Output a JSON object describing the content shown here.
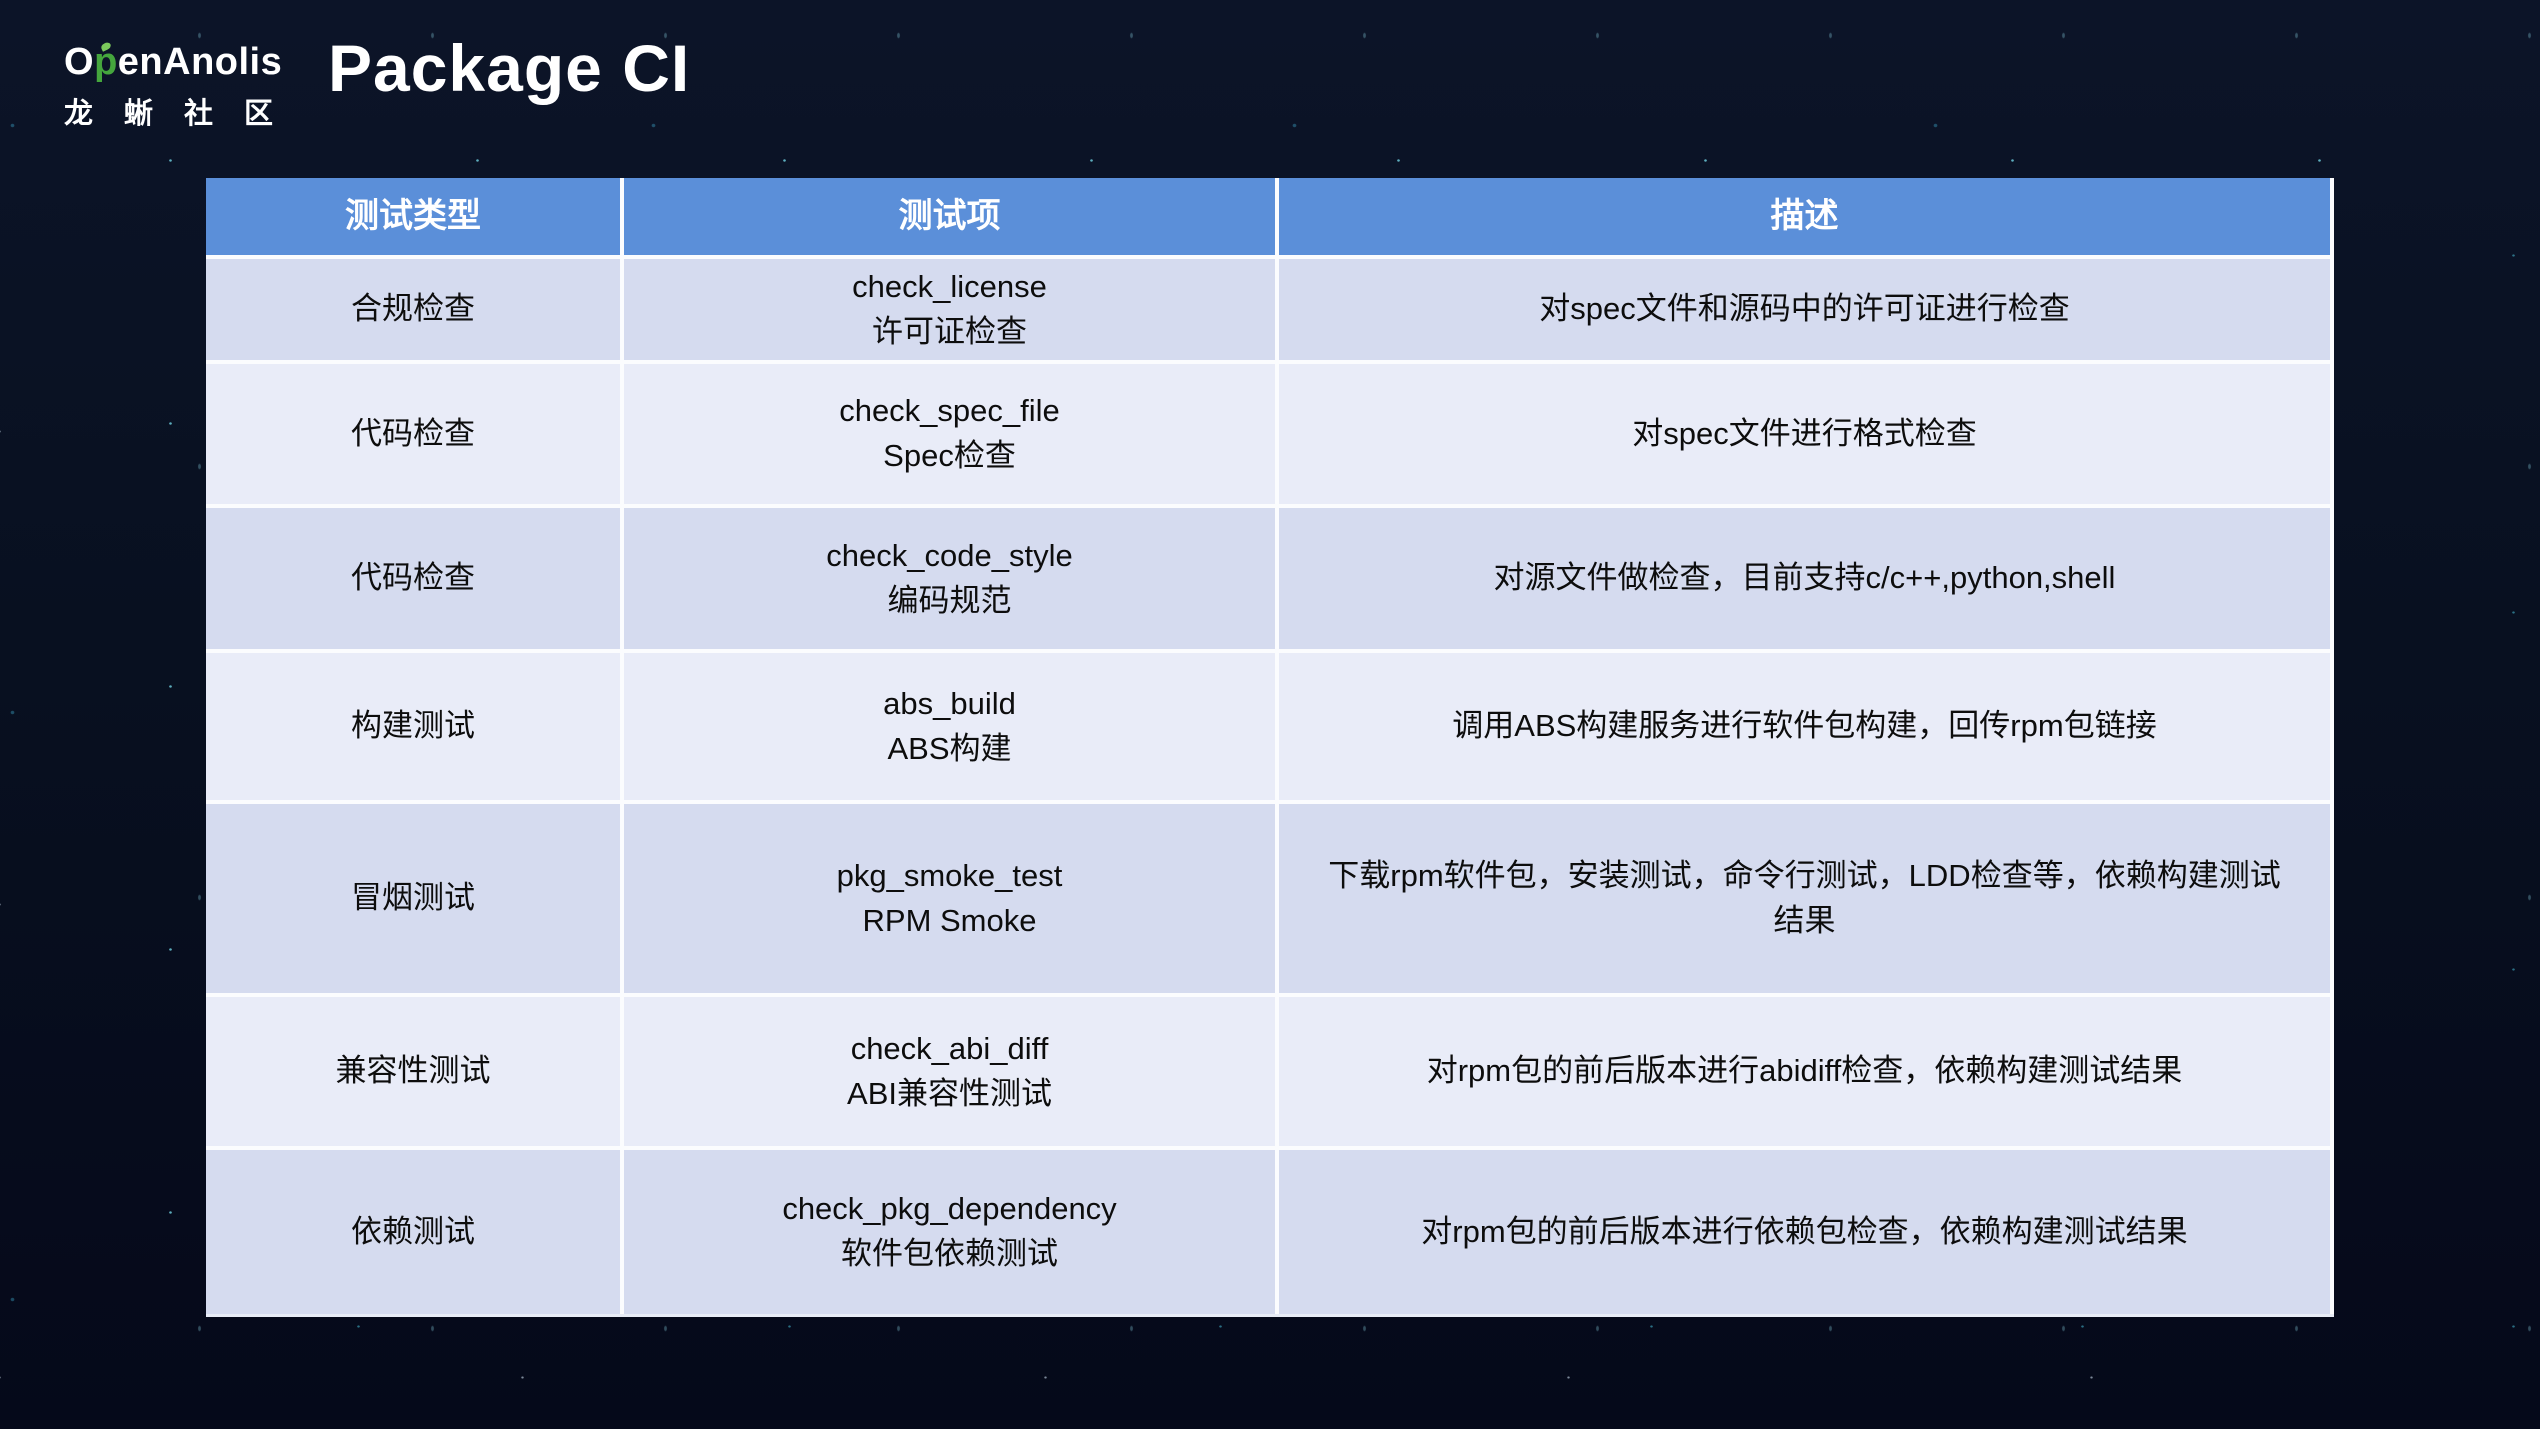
{
  "slide": {
    "logo": {
      "brand_prefix": "O",
      "brand_green_letter": "p",
      "brand_suffix": "enAnolis",
      "brand_zh": "龙蜥社区"
    },
    "title": "Package CI"
  },
  "table": {
    "headers": [
      "测试类型",
      "测试项",
      "描述"
    ],
    "rows": [
      {
        "type": "合规检查",
        "item": "check_license",
        "item_zh": "许可证检查",
        "desc": "对spec文件和源码中的许可证进行检查"
      },
      {
        "type": "代码检查",
        "item": "check_spec_file",
        "item_zh": "Spec检查",
        "desc": "对spec文件进行格式检查"
      },
      {
        "type": "代码检查",
        "item": "check_code_style",
        "item_zh": "编码规范",
        "desc": "对源文件做检查，目前支持c/c++,python,shell"
      },
      {
        "type": "构建测试",
        "item": "abs_build",
        "item_zh": "ABS构建",
        "desc": "调用ABS构建服务进行软件包构建，回传rpm包链接"
      },
      {
        "type": "冒烟测试",
        "item": "pkg_smoke_test",
        "item_zh": "RPM Smoke",
        "desc": "下载rpm软件包，安装测试，命令行测试，LDD检查等，依赖构建测试结果"
      },
      {
        "type": "兼容性测试",
        "item": "check_abi_diff",
        "item_zh": "ABI兼容性测试",
        "desc": "对rpm包的前后版本进行abidiff检查，依赖构建测试结果"
      },
      {
        "type": "依赖测试",
        "item": "check_pkg_dependency",
        "item_zh": "软件包依赖测试",
        "desc": "对rpm包的前后版本进行依赖包检查，依赖构建测试结果"
      }
    ]
  },
  "colors": {
    "header_bg": "#5b8fd9",
    "row_dark": "#d5dbef",
    "row_light": "#e9ecf8",
    "background": "#070d1d",
    "logo_green": "#45a63d",
    "star_teal": "#35c8d8"
  }
}
